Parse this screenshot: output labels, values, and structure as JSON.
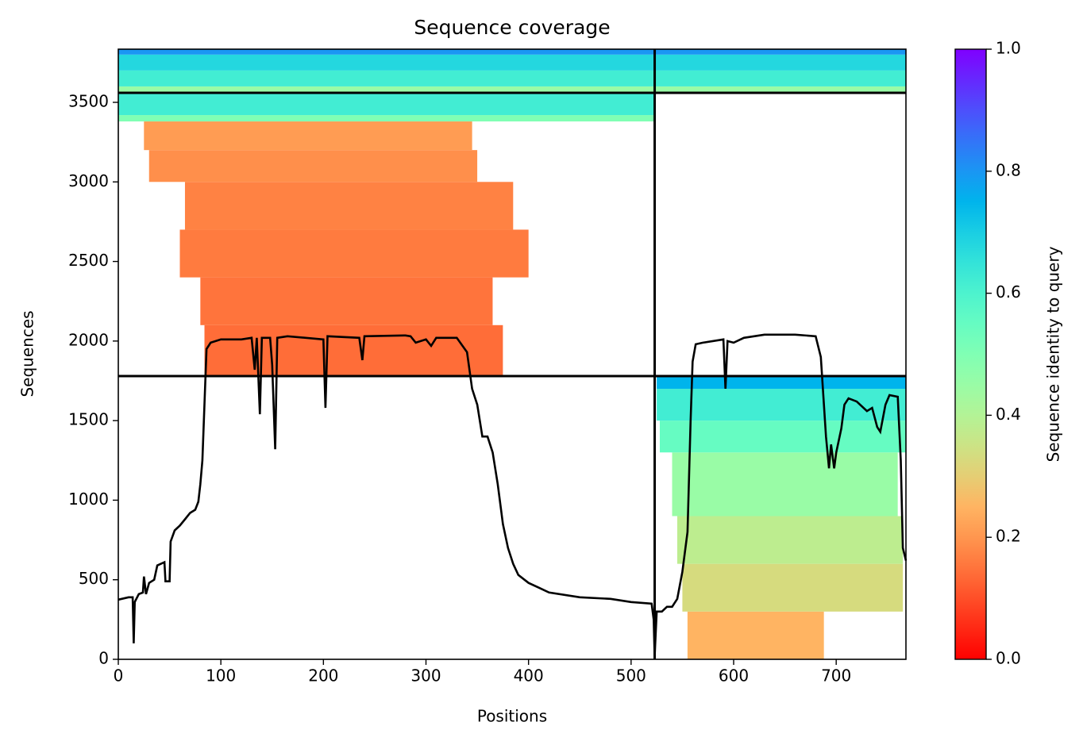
{
  "chart_data": {
    "type": "coverage",
    "title": "Sequence coverage",
    "xlabel": "Positions",
    "ylabel": "Sequences",
    "xlim": [
      0,
      768
    ],
    "ylim": [
      0,
      3834
    ],
    "xticks": [
      0,
      100,
      200,
      300,
      400,
      500,
      600,
      700
    ],
    "yticks": [
      0,
      500,
      1000,
      1500,
      2000,
      2500,
      3000,
      3500
    ],
    "colorbar": {
      "label": "Sequence identity to query",
      "colormap": "rainbow_r",
      "lim": [
        0,
        1
      ],
      "ticks": [
        {
          "value": 0,
          "label": "0.0"
        },
        0.2,
        0.4,
        0.6,
        0.8,
        {
          "value": 1,
          "label": "1.0"
        }
      ]
    },
    "blocks": [
      {
        "x": [
          84,
          375
        ],
        "y": [
          1780,
          2100
        ],
        "identity": 0.14
      },
      {
        "x": [
          80,
          365
        ],
        "y": [
          2100,
          2400
        ],
        "identity": 0.15
      },
      {
        "x": [
          60,
          400
        ],
        "y": [
          2400,
          2700
        ],
        "identity": 0.16
      },
      {
        "x": [
          65,
          385
        ],
        "y": [
          2700,
          3000
        ],
        "identity": 0.17
      },
      {
        "x": [
          30,
          350
        ],
        "y": [
          3000,
          3200
        ],
        "identity": 0.19
      },
      {
        "x": [
          25,
          345
        ],
        "y": [
          3200,
          3380
        ],
        "identity": 0.21
      },
      {
        "x": [
          0,
          523
        ],
        "y": [
          3380,
          3420
        ],
        "identity": 0.5
      },
      {
        "x": [
          0,
          523
        ],
        "y": [
          3420,
          3560
        ],
        "identity": 0.62
      },
      {
        "x": [
          0,
          768
        ],
        "y": [
          3560,
          3600
        ],
        "identity": 0.45
      },
      {
        "x": [
          0,
          768
        ],
        "y": [
          3600,
          3700
        ],
        "identity": 0.62
      },
      {
        "x": [
          0,
          768
        ],
        "y": [
          3700,
          3800
        ],
        "identity": 0.68
      },
      {
        "x": [
          0,
          768
        ],
        "y": [
          3800,
          3834
        ],
        "identity": 0.8
      },
      {
        "x": [
          555,
          688
        ],
        "y": [
          0,
          300
        ],
        "identity": 0.25
      },
      {
        "x": [
          550,
          765
        ],
        "y": [
          300,
          600
        ],
        "identity": 0.33
      },
      {
        "x": [
          545,
          765
        ],
        "y": [
          600,
          900
        ],
        "identity": 0.38
      },
      {
        "x": [
          540,
          760
        ],
        "y": [
          900,
          1300
        ],
        "identity": 0.45
      },
      {
        "x": [
          528,
          768
        ],
        "y": [
          1300,
          1500
        ],
        "identity": 0.55
      },
      {
        "x": [
          525,
          768
        ],
        "y": [
          1500,
          1700
        ],
        "identity": 0.62
      },
      {
        "x": [
          525,
          768
        ],
        "y": [
          1700,
          1780
        ],
        "identity": 0.75
      }
    ],
    "dividers": {
      "x": [
        523
      ],
      "y": [
        1780,
        3560
      ]
    },
    "coverage": {
      "color": "#000000",
      "x": [
        0,
        10,
        14,
        15,
        16,
        20,
        24,
        25,
        27,
        30,
        35,
        38,
        45,
        46,
        50,
        51,
        55,
        60,
        65,
        70,
        75,
        78,
        80,
        82,
        84,
        86,
        90,
        100,
        120,
        130,
        133,
        135,
        138,
        140,
        148,
        150,
        153,
        155,
        165,
        200,
        202,
        204,
        235,
        238,
        240,
        280,
        285,
        290,
        300,
        305,
        310,
        330,
        340,
        345,
        350,
        355,
        360,
        365,
        370,
        375,
        380,
        385,
        390,
        400,
        410,
        420,
        450,
        480,
        500,
        520,
        522,
        523,
        525,
        530,
        535,
        540,
        545,
        550,
        555,
        558,
        560,
        563,
        570,
        590,
        592,
        594,
        600,
        610,
        630,
        660,
        680,
        685,
        688,
        690,
        693,
        695,
        698,
        700,
        705,
        708,
        712,
        720,
        730,
        735,
        740,
        743,
        748,
        752,
        760,
        763,
        765,
        768
      ],
      "values": [
        375,
        390,
        390,
        100,
        360,
        410,
        420,
        520,
        410,
        480,
        500,
        590,
        610,
        490,
        490,
        740,
        810,
        840,
        880,
        920,
        940,
        990,
        1100,
        1250,
        1600,
        1950,
        1990,
        2010,
        2010,
        2020,
        1820,
        2020,
        1540,
        2020,
        2020,
        1850,
        1320,
        2020,
        2030,
        2010,
        1580,
        2030,
        2020,
        1880,
        2030,
        2035,
        2030,
        1990,
        2010,
        1970,
        2020,
        2020,
        1930,
        1700,
        1600,
        1400,
        1400,
        1300,
        1100,
        850,
        700,
        600,
        530,
        480,
        450,
        420,
        390,
        380,
        360,
        350,
        250,
        20,
        300,
        300,
        330,
        330,
        380,
        550,
        800,
        1500,
        1870,
        1980,
        1990,
        2010,
        1700,
        2000,
        1990,
        2020,
        2040,
        2040,
        2030,
        1900,
        1600,
        1400,
        1200,
        1350,
        1200,
        1300,
        1450,
        1600,
        1640,
        1620,
        1560,
        1580,
        1460,
        1430,
        1600,
        1660,
        1650,
        1250,
        700,
        620
      ]
    }
  }
}
